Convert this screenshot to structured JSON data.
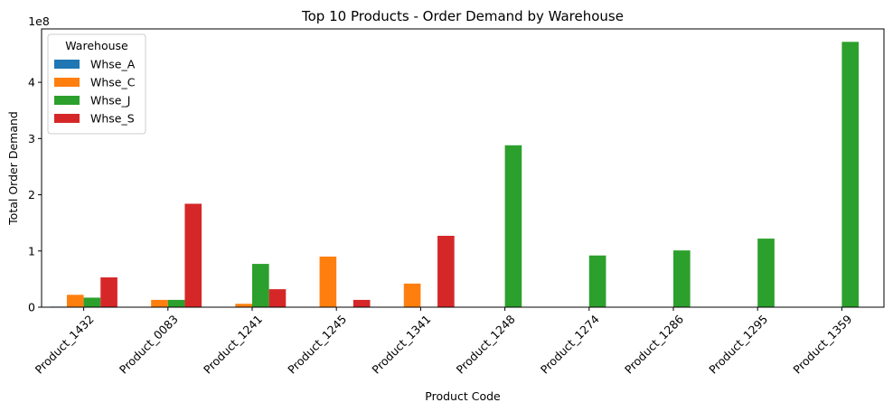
{
  "chart_data": {
    "type": "bar",
    "title": "Top 10 Products - Order Demand by Warehouse",
    "xlabel": "Product Code",
    "ylabel": "Total Order Demand",
    "y_scale_label": "1e8",
    "y_tick_values": [
      0,
      1,
      2,
      3,
      4
    ],
    "ylim": [
      0,
      4.95
    ],
    "grid": false,
    "legend_title": "Warehouse",
    "legend_position": "top-left",
    "categories": [
      "Product_1432",
      "Product_0083",
      "Product_1241",
      "Product_1245",
      "Product_1341",
      "Product_1248",
      "Product_1274",
      "Product_1286",
      "Product_1295",
      "Product_1359"
    ],
    "series": [
      {
        "name": "Whse_A",
        "color": "#1f77b4",
        "values": [
          0.01,
          null,
          null,
          null,
          null,
          null,
          null,
          null,
          null,
          null
        ]
      },
      {
        "name": "Whse_C",
        "color": "#ff7f0e",
        "values": [
          0.22,
          0.13,
          0.06,
          0.9,
          0.42,
          null,
          null,
          null,
          null,
          null
        ]
      },
      {
        "name": "Whse_J",
        "color": "#2ca02c",
        "values": [
          0.17,
          0.13,
          0.77,
          null,
          null,
          2.88,
          0.92,
          1.01,
          1.22,
          4.72
        ]
      },
      {
        "name": "Whse_S",
        "color": "#d62728",
        "values": [
          0.53,
          1.84,
          0.32,
          0.13,
          1.27,
          null,
          null,
          null,
          null,
          null
        ]
      }
    ]
  }
}
